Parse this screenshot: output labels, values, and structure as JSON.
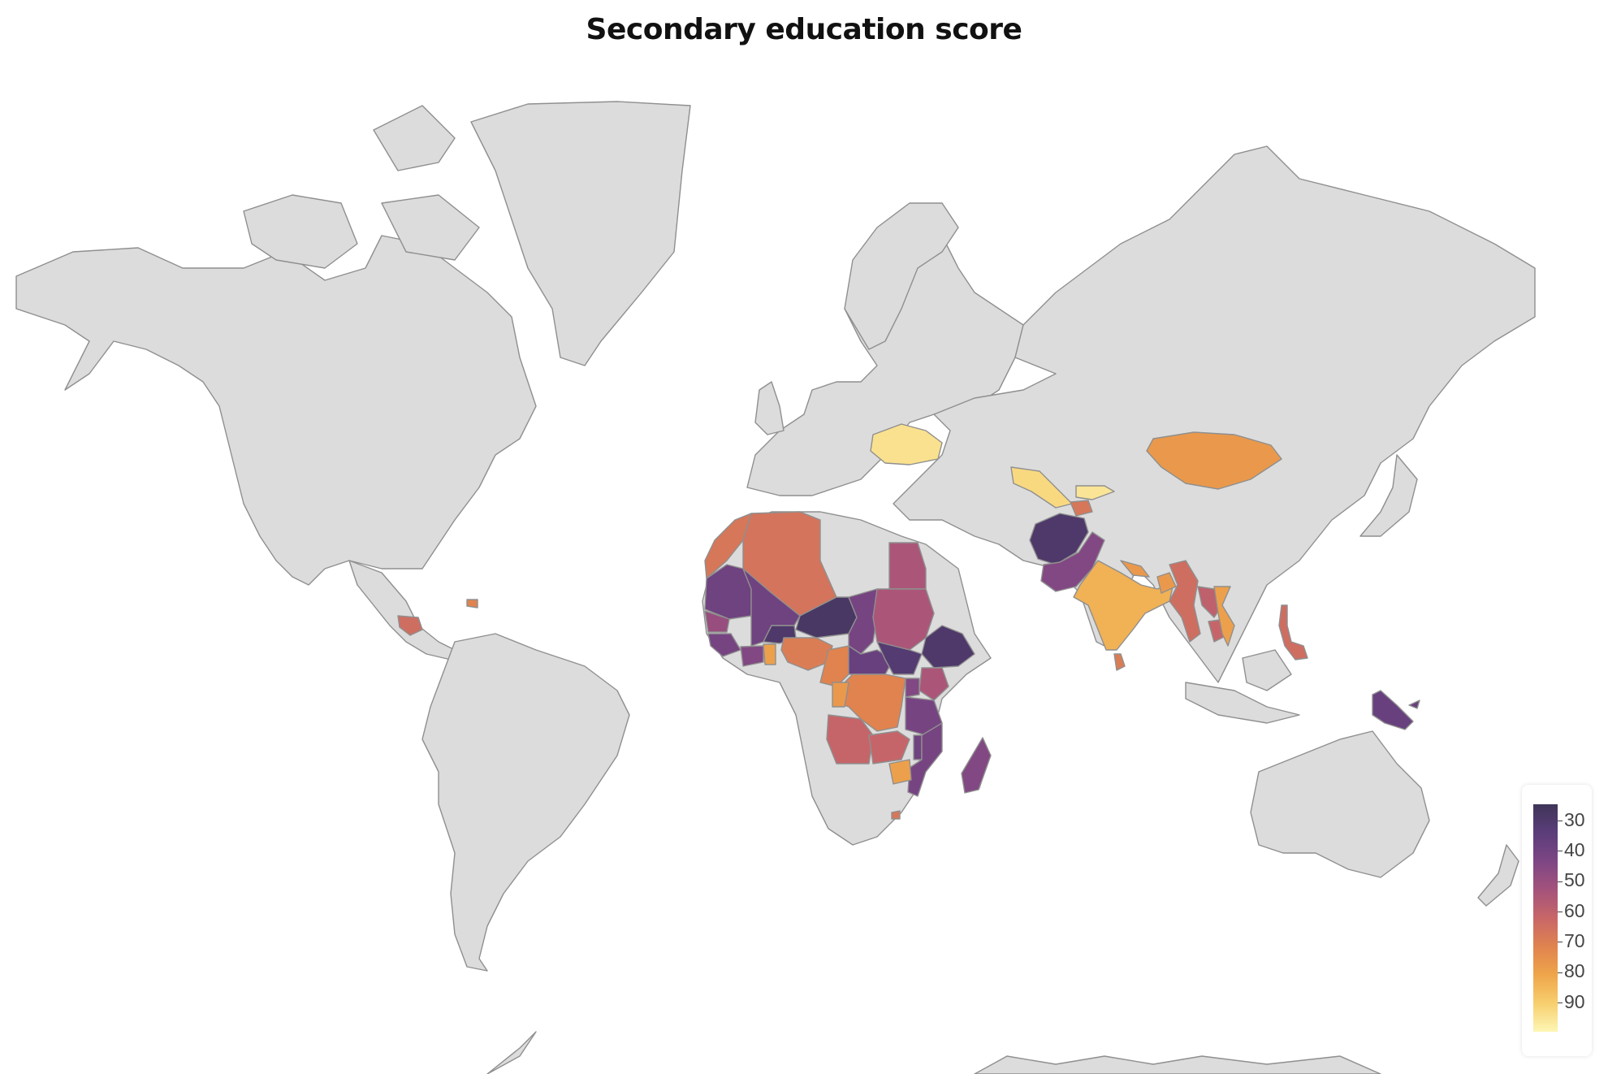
{
  "title": "Secondary education score",
  "colorscale": {
    "name": "inferno-like",
    "stops": [
      "#3f3558",
      "#5b3d7a",
      "#7d4684",
      "#a4527c",
      "#c86668",
      "#e0834f",
      "#efa54a",
      "#f7cf6e",
      "#fdf6b5"
    ],
    "range": [
      25,
      100
    ],
    "ticks": [
      "30",
      "40",
      "50",
      "60",
      "70",
      "80",
      "90"
    ],
    "tick_values": [
      30,
      40,
      50,
      60,
      70,
      80,
      90
    ]
  },
  "map_data": {
    "type": "choropleth",
    "projection": "mercator",
    "default_fill": "#dcdcdc",
    "countries": [
      {
        "id": "ukraine",
        "value": 95
      },
      {
        "id": "uzbekistan",
        "value": 93
      },
      {
        "id": "kyrgyzstan",
        "value": 96
      },
      {
        "id": "tajikistan",
        "value": 68
      },
      {
        "id": "mongolia",
        "value": 78
      },
      {
        "id": "afghanistan",
        "value": 30
      },
      {
        "id": "pakistan",
        "value": 45
      },
      {
        "id": "india",
        "value": 84
      },
      {
        "id": "nepal",
        "value": 78
      },
      {
        "id": "bangladesh",
        "value": 78
      },
      {
        "id": "myanmar",
        "value": 65
      },
      {
        "id": "laos",
        "value": 60
      },
      {
        "id": "cambodia",
        "value": 62
      },
      {
        "id": "vietnam",
        "value": 80
      },
      {
        "id": "philippines",
        "value": 65
      },
      {
        "id": "sri-lanka",
        "value": 70
      },
      {
        "id": "papua-new-guinea",
        "value": 38
      },
      {
        "id": "morocco",
        "value": 68
      },
      {
        "id": "algeria",
        "value": 67
      },
      {
        "id": "egypt",
        "value": 55
      },
      {
        "id": "mauritania",
        "value": 40
      },
      {
        "id": "mali",
        "value": 40
      },
      {
        "id": "niger",
        "value": 28
      },
      {
        "id": "chad",
        "value": 42
      },
      {
        "id": "sudan",
        "value": 55
      },
      {
        "id": "ethiopia",
        "value": 30
      },
      {
        "id": "burkina-faso",
        "value": 30
      },
      {
        "id": "senegal",
        "value": 50
      },
      {
        "id": "guinea",
        "value": 42
      },
      {
        "id": "cote-divoire",
        "value": 45
      },
      {
        "id": "ghana",
        "value": 80
      },
      {
        "id": "nigeria",
        "value": 70
      },
      {
        "id": "cameroon",
        "value": 72
      },
      {
        "id": "car",
        "value": 38
      },
      {
        "id": "south-sudan",
        "value": 32
      },
      {
        "id": "kenya",
        "value": 55
      },
      {
        "id": "drc",
        "value": 72
      },
      {
        "id": "congo",
        "value": 78
      },
      {
        "id": "uganda",
        "value": 45
      },
      {
        "id": "tanzania",
        "value": 42
      },
      {
        "id": "angola",
        "value": 62
      },
      {
        "id": "zambia",
        "value": 62
      },
      {
        "id": "malawi",
        "value": 40
      },
      {
        "id": "mozambique",
        "value": 42
      },
      {
        "id": "zimbabwe",
        "value": 80
      },
      {
        "id": "madagascar",
        "value": 45
      },
      {
        "id": "lesotho",
        "value": 68
      },
      {
        "id": "honduras",
        "value": 65
      },
      {
        "id": "haiti",
        "value": 72
      }
    ]
  }
}
